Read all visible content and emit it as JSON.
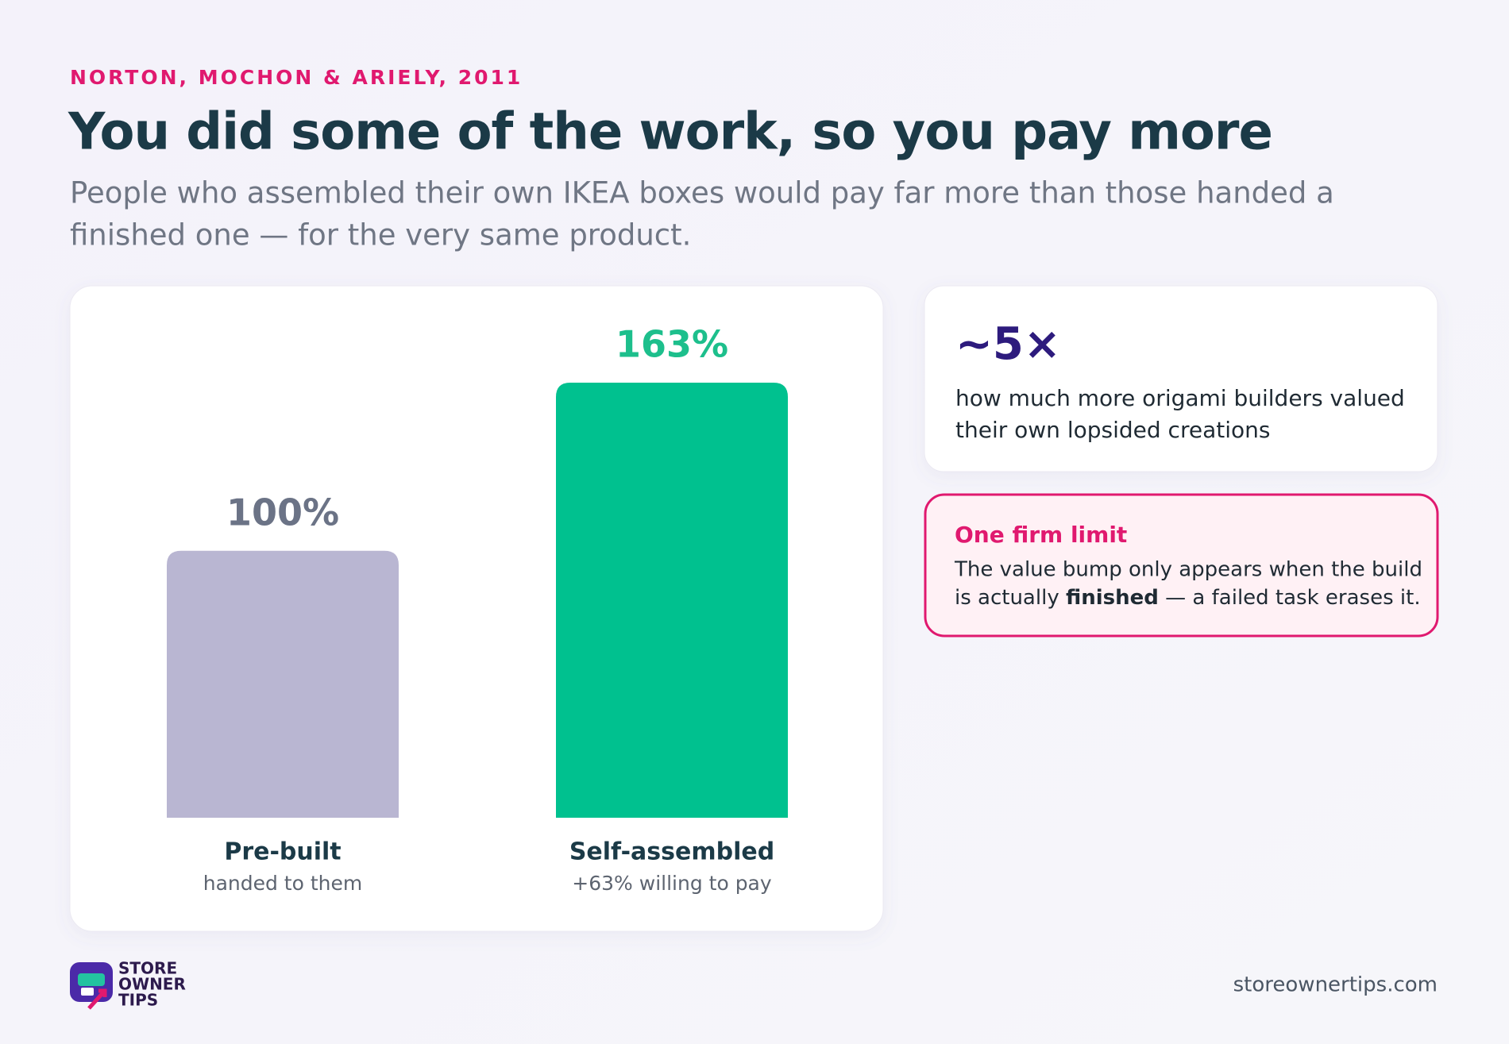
{
  "header": {
    "eyebrow": "NORTON, MOCHON & ARIELY, 2011",
    "title": "You did some of the work, so you pay more",
    "subtitle_lines": [
      "People who assembled their own IKEA boxes would pay far more than those handed a",
      "finished one — for the very same product."
    ]
  },
  "chart_data": {
    "type": "bar",
    "categories": [
      "Pre-built",
      "Self-assembled"
    ],
    "category_notes": [
      "handed to them",
      "+63% willing to pay"
    ],
    "values": [
      100,
      163
    ],
    "value_labels": [
      "100%",
      "163%"
    ],
    "colors": [
      "#b9b6d2",
      "#00c18f"
    ],
    "label_colors": [
      "#6b7386",
      "#1dbf8c"
    ]
  },
  "stat_card": {
    "stat": "~5×",
    "lines": [
      "how much more origami builders valued",
      "their own lopsided creations"
    ]
  },
  "limit_card": {
    "title": "One firm limit",
    "line1": "The value bump only appears when the build",
    "line2_parts": [
      "is actually ",
      "finished",
      " — a failed task erases it."
    ]
  },
  "footer": {
    "logo_lines": [
      "STORE",
      "OWNER",
      "TIPS"
    ],
    "url": "storeownertips.com"
  }
}
